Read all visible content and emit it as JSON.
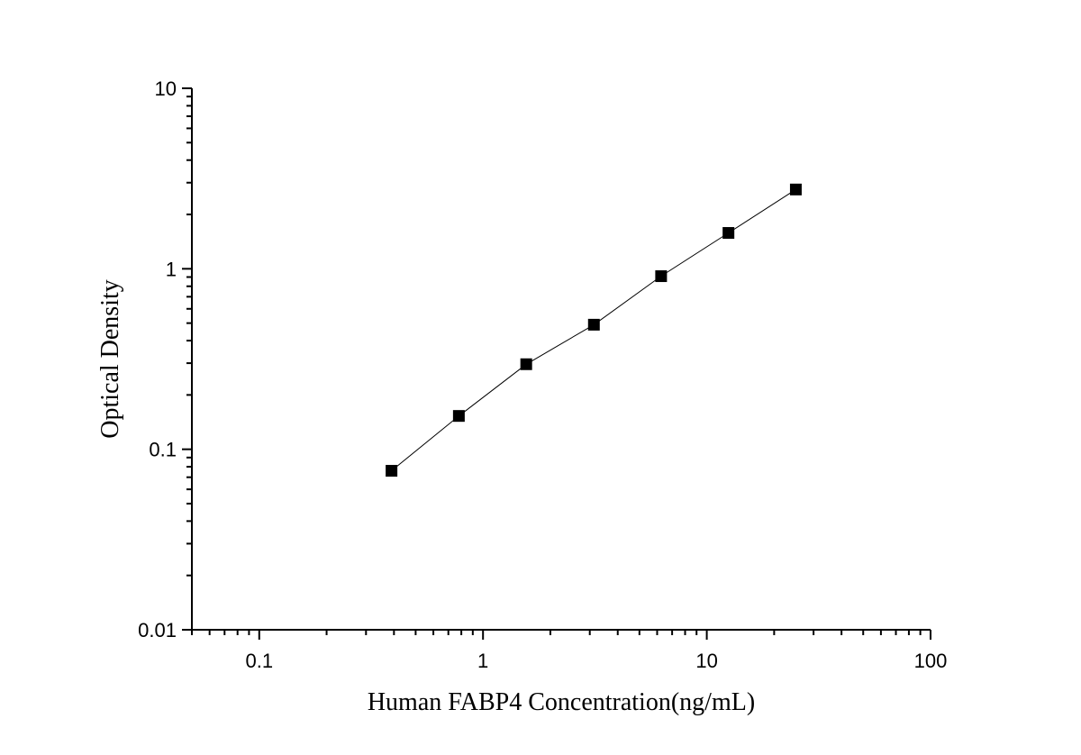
{
  "chart_data": {
    "type": "scatter",
    "title": "",
    "xlabel": "Human FABP4 Concentration(ng/mL)",
    "ylabel": "Optical Density",
    "x_scale": "log",
    "y_scale": "log",
    "xlim": [
      0.05,
      100
    ],
    "ylim": [
      0.01,
      10
    ],
    "x_ticks": [
      {
        "value": 0.1,
        "label": "0.1"
      },
      {
        "value": 1,
        "label": "1"
      },
      {
        "value": 10,
        "label": "10"
      },
      {
        "value": 100,
        "label": "100"
      }
    ],
    "y_ticks": [
      {
        "value": 0.01,
        "label": "0.01"
      },
      {
        "value": 0.1,
        "label": "0.1"
      },
      {
        "value": 1,
        "label": "1"
      },
      {
        "value": 10,
        "label": "10"
      }
    ],
    "grid": false,
    "legend": "none",
    "marker": "square",
    "color": "#000000",
    "fit_line": true,
    "series": [
      {
        "x": [
          0.39,
          0.78,
          1.56,
          3.13,
          6.25,
          12.5,
          25
        ],
        "y": [
          0.076,
          0.153,
          0.296,
          0.49,
          0.91,
          1.58,
          2.75
        ]
      }
    ]
  }
}
